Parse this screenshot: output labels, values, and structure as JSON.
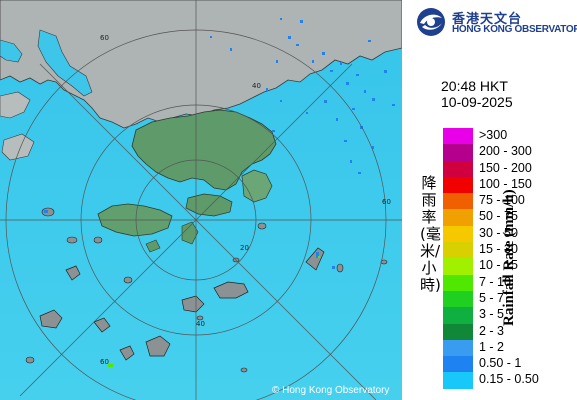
{
  "map": {
    "copyright": "© Hong Kong Observatory",
    "range_ring_labels": [
      "60",
      "60",
      "60",
      "40",
      "20",
      "40"
    ]
  },
  "header": {
    "logo_cn": "香港天文台",
    "logo_en": "HONG KONG OBSERVATORY",
    "time": "20:48 HKT",
    "date": "10-09-2025"
  },
  "legend": {
    "title_en": "Rainfall Rate (mm/h)",
    "title_cn": "降雨率(毫米/小時)",
    "classes": [
      {
        "label": ">300",
        "color": "#e800e8"
      },
      {
        "label": "200 - 300",
        "color": "#b4008c"
      },
      {
        "label": "150 - 200",
        "color": "#d00040"
      },
      {
        "label": "100 - 150",
        "color": "#f00000"
      },
      {
        "label": "75 - 100",
        "color": "#f06000"
      },
      {
        "label": "50 - 75",
        "color": "#f0a000"
      },
      {
        "label": "30 - 50",
        "color": "#f5c800"
      },
      {
        "label": "15 - 30",
        "color": "#d8d000"
      },
      {
        "label": "10 - 15",
        "color": "#a0f000"
      },
      {
        "label": "7 - 10",
        "color": "#50e800"
      },
      {
        "label": "5 - 7",
        "color": "#20d020"
      },
      {
        "label": "3 - 5",
        "color": "#10b040"
      },
      {
        "label": "2 - 3",
        "color": "#108838"
      },
      {
        "label": "1 - 2",
        "color": "#3a9cf0"
      },
      {
        "label": "0.50 - 1",
        "color": "#1e82f0"
      },
      {
        "label": "0.15 - 0.50",
        "color": "#18c8f8"
      }
    ]
  }
}
